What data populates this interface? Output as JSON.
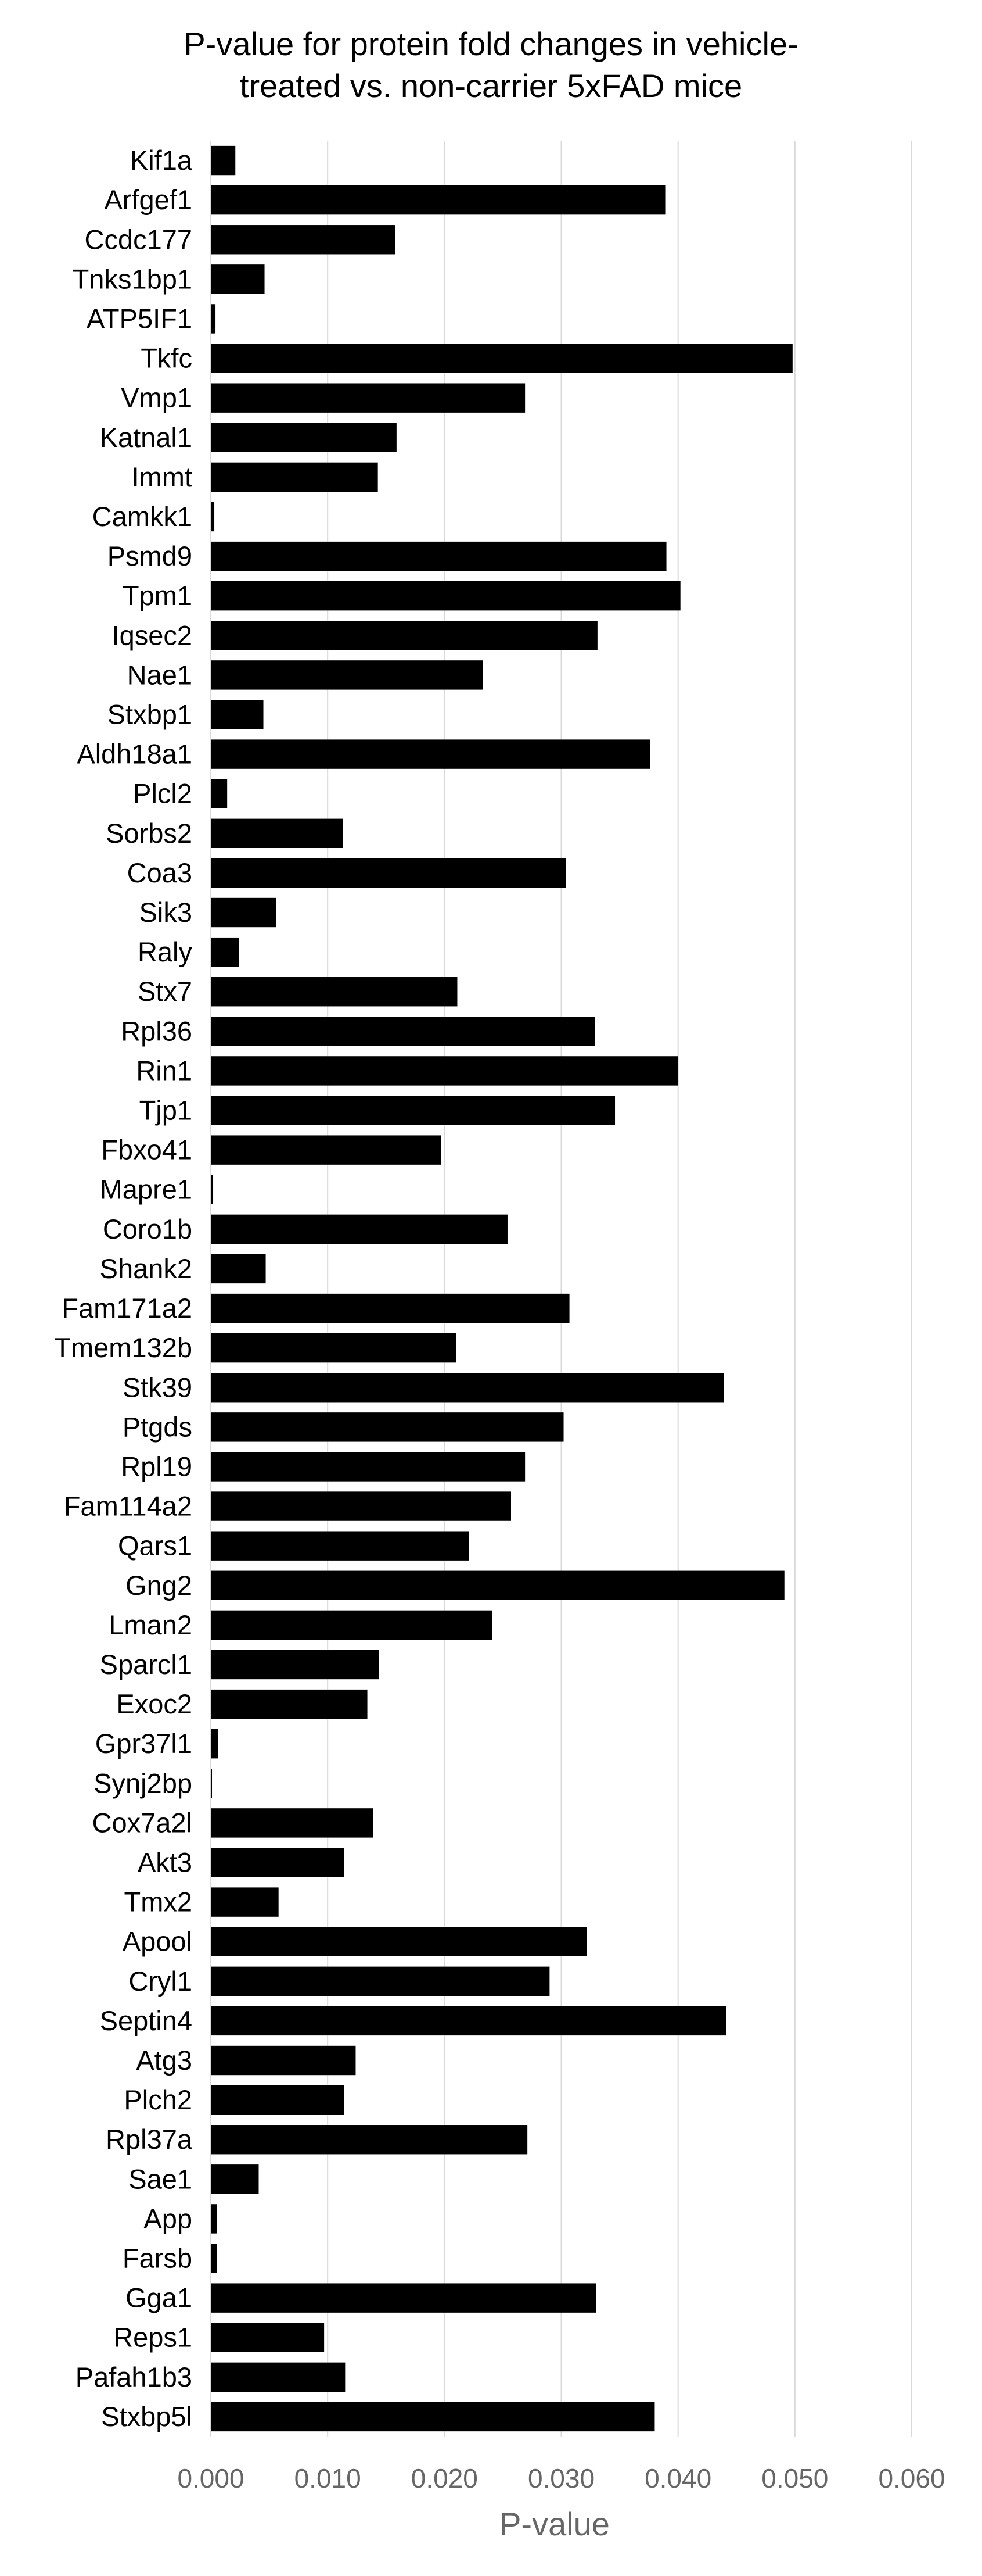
{
  "chart_data": {
    "type": "bar",
    "orientation": "horizontal",
    "title_lines": [
      "P-value for protein fold changes in vehicle-",
      "treated vs. non-carrier 5xFAD mice"
    ],
    "xlabel": "P-value",
    "ylabel": "",
    "xlim": [
      0,
      0.06
    ],
    "xticks": [
      "0.000",
      "0.010",
      "0.020",
      "0.030",
      "0.040",
      "0.050",
      "0.060"
    ],
    "grid": "vertical",
    "legend": "none",
    "bar_color": "#000000",
    "grid_color": "#d9d9d9",
    "categories": [
      "Kif1a",
      "Arfgef1",
      "Ccdc177",
      "Tnks1bp1",
      "ATP5IF1",
      "Tkfc",
      "Vmp1",
      "Katnal1",
      "Immt",
      "Camkk1",
      "Psmd9",
      "Tpm1",
      "Iqsec2",
      "Nae1",
      "Stxbp1",
      "Aldh18a1",
      "Plcl2",
      "Sorbs2",
      "Coa3",
      "Sik3",
      "Raly",
      "Stx7",
      "Rpl36",
      "Rin1",
      "Tjp1",
      "Fbxo41",
      "Mapre1",
      "Coro1b",
      "Shank2",
      "Fam171a2",
      "Tmem132b",
      "Stk39",
      "Ptgds",
      "Rpl19",
      "Fam114a2",
      "Qars1",
      "Gng2",
      "Lman2",
      "Sparcl1",
      "Exoc2",
      "Gpr37l1",
      "Synj2bp",
      "Cox7a2l",
      "Akt3",
      "Tmx2",
      "Apool",
      "Cryl1",
      "Septin4",
      "Atg3",
      "Plch2",
      "Rpl37a",
      "Sae1",
      "App",
      "Farsb",
      "Gga1",
      "Reps1",
      "Pafah1b3",
      "Stxbp5l"
    ],
    "values": [
      0.0021,
      0.0389,
      0.0158,
      0.0046,
      0.0004,
      0.0498,
      0.0269,
      0.0159,
      0.0143,
      0.0003,
      0.039,
      0.0402,
      0.0331,
      0.0233,
      0.0045,
      0.0376,
      0.0014,
      0.0113,
      0.0304,
      0.0056,
      0.0024,
      0.0211,
      0.0329,
      0.04,
      0.0346,
      0.0197,
      0.0002,
      0.0254,
      0.0047,
      0.0307,
      0.021,
      0.0439,
      0.0302,
      0.0269,
      0.0257,
      0.0221,
      0.0491,
      0.0241,
      0.0144,
      0.0134,
      0.0006,
      0.0001,
      0.0139,
      0.0114,
      0.0058,
      0.0322,
      0.029,
      0.0441,
      0.0124,
      0.0114,
      0.0271,
      0.0041,
      0.0005,
      0.0005,
      0.033,
      0.0097,
      0.0115,
      0.038
    ]
  }
}
